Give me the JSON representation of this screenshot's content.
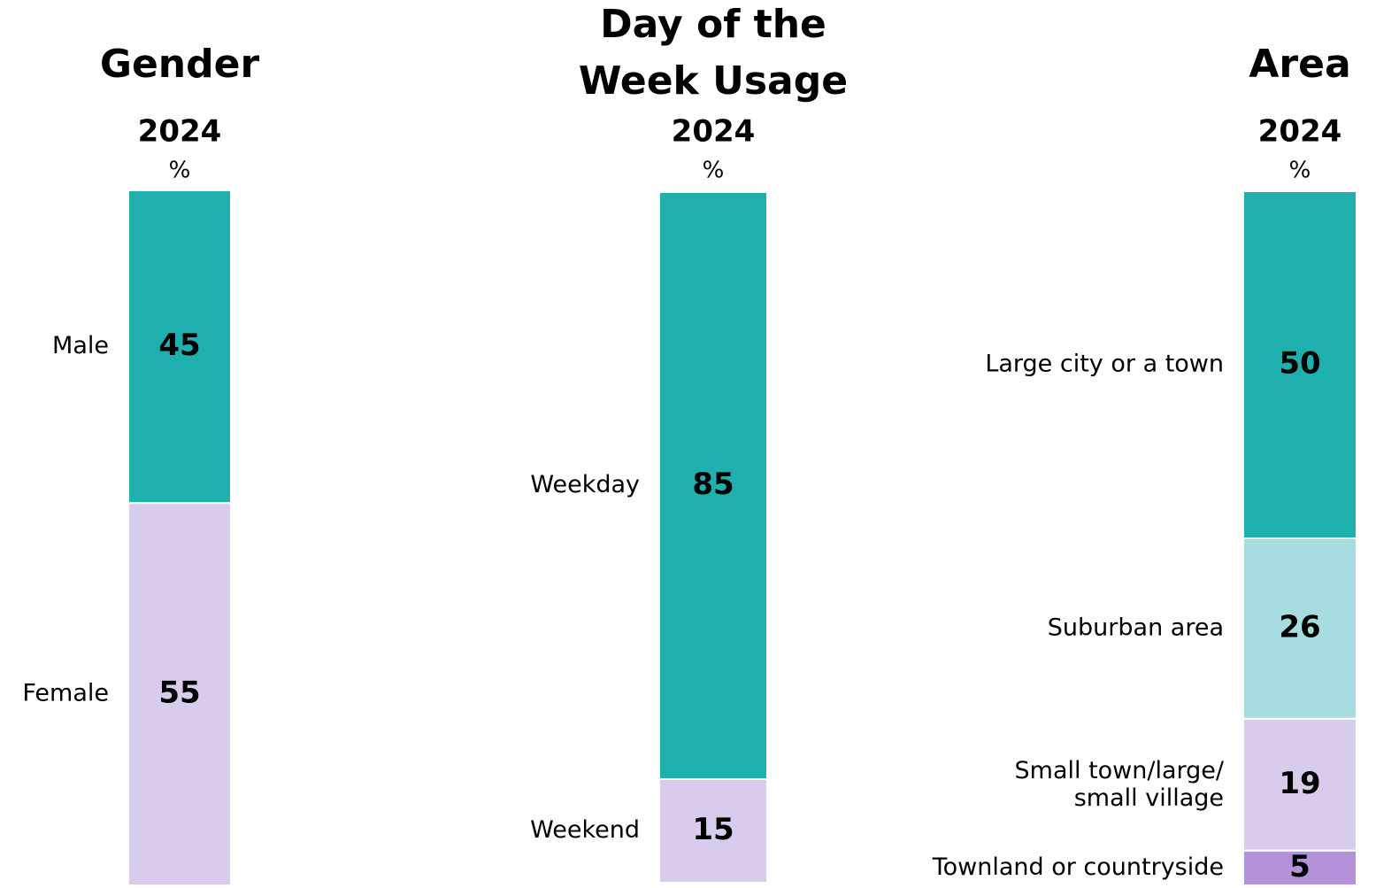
{
  "chart_data": [
    {
      "type": "stacked-bar",
      "title": "Gender",
      "subtitle": "2024",
      "unit_label": "%",
      "categories": [
        "Male",
        "Female"
      ],
      "values": [
        45,
        55
      ],
      "colors": [
        "#1eafae",
        "#d9cbeb"
      ],
      "ylim": [
        0,
        100
      ]
    },
    {
      "type": "stacked-bar",
      "title": "Day of the\nWeek Usage",
      "subtitle": "2024",
      "unit_label": "%",
      "categories": [
        "Weekday",
        "Weekend"
      ],
      "values": [
        85,
        15
      ],
      "colors": [
        "#1eafae",
        "#d9cbeb"
      ],
      "ylim": [
        0,
        100
      ]
    },
    {
      "type": "stacked-bar",
      "title": "Area",
      "subtitle": "2024",
      "unit_label": "%",
      "categories": [
        "Large city or a town",
        "Suburban area",
        "Small town/large/\nsmall village",
        "Townland or countryside"
      ],
      "values": [
        50,
        26,
        19,
        5
      ],
      "colors": [
        "#1eafae",
        "#a7dce0",
        "#d9cbeb",
        "#b392d9"
      ],
      "ylim": [
        0,
        100
      ]
    }
  ]
}
